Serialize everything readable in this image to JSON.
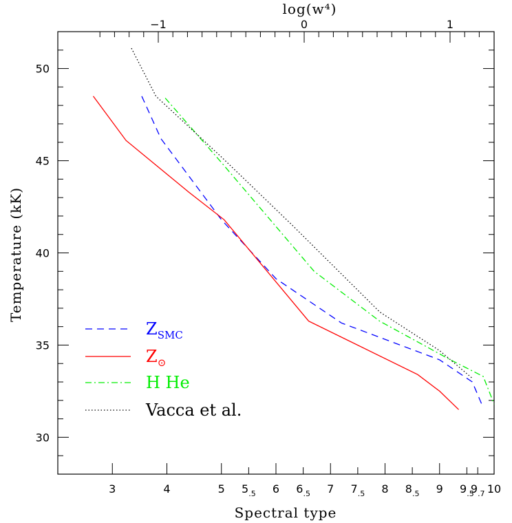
{
  "chart_data": {
    "type": "line",
    "title": "",
    "xlabel": "Spectral type",
    "ylabel": "Temperature (kK)",
    "top_xlabel": "log(w⁴)",
    "ylim": [
      28,
      52
    ],
    "xlim": [
      2,
      10
    ],
    "y_ticks": [
      30,
      35,
      40,
      45,
      50
    ],
    "top_x_ticks": [
      {
        "value": -1,
        "label": "−1"
      },
      {
        "value": 0,
        "label": "0"
      },
      {
        "value": 1,
        "label": "1"
      }
    ],
    "x_tick_labels": [
      {
        "value": 3,
        "main": "3",
        "sub": ""
      },
      {
        "value": 4,
        "main": "4",
        "sub": ""
      },
      {
        "value": 5,
        "main": "5",
        "sub": ""
      },
      {
        "value": 5.5,
        "main": "5",
        "sub": ".5"
      },
      {
        "value": 6,
        "main": "6",
        "sub": ""
      },
      {
        "value": 6.5,
        "main": "6",
        "sub": ".5"
      },
      {
        "value": 7,
        "main": "7",
        "sub": ""
      },
      {
        "value": 7.5,
        "main": "7",
        "sub": ".5"
      },
      {
        "value": 8,
        "main": "8",
        "sub": ""
      },
      {
        "value": 8.5,
        "main": "8",
        "sub": ".5"
      },
      {
        "value": 9,
        "main": "9",
        "sub": ""
      },
      {
        "value": 9.5,
        "main": "9",
        "sub": ".5"
      },
      {
        "value": 9.7,
        "main": "9",
        "sub": ".7"
      },
      {
        "value": 10,
        "main": "10",
        "sub": ""
      }
    ],
    "legend_position": "bottom-left",
    "series": [
      {
        "name": "Z",
        "name_sub": "SMC",
        "color": "#0000ff",
        "dash": "dashed",
        "points": [
          [
            3.54,
            48.5
          ],
          [
            3.89,
            46.2
          ],
          [
            5.0,
            41.8
          ],
          [
            6.0,
            38.6
          ],
          [
            7.2,
            36.2
          ],
          [
            9.0,
            34.2
          ],
          [
            9.6,
            33.0
          ],
          [
            9.8,
            31.6
          ]
        ]
      },
      {
        "name": "Z",
        "name_sub": "⊙",
        "color": "#ff0000",
        "dash": "solid",
        "points": [
          [
            2.65,
            48.5
          ],
          [
            3.25,
            46.1
          ],
          [
            4.4,
            43.3
          ],
          [
            5.05,
            41.8
          ],
          [
            6.6,
            36.3
          ],
          [
            8.6,
            33.4
          ],
          [
            9.0,
            32.5
          ],
          [
            9.35,
            31.5
          ]
        ]
      },
      {
        "name": "H He",
        "name_sub": "",
        "color": "#00ee00",
        "dash": "dashdot",
        "points": [
          [
            3.97,
            48.4
          ],
          [
            5.0,
            44.9
          ],
          [
            6.7,
            39.0
          ],
          [
            7.9,
            36.3
          ],
          [
            9.2,
            34.2
          ],
          [
            9.8,
            33.3
          ],
          [
            10.0,
            31.8
          ]
        ]
      },
      {
        "name": "Vacca et al.",
        "name_sub": "",
        "color": "#000000",
        "dash": "dotted",
        "points": [
          [
            3.35,
            51.1
          ],
          [
            3.8,
            48.5
          ],
          [
            5.0,
            45.2
          ],
          [
            6.3,
            41.5
          ],
          [
            7.9,
            36.8
          ],
          [
            9.0,
            34.7
          ],
          [
            9.6,
            33.2
          ]
        ]
      }
    ]
  }
}
